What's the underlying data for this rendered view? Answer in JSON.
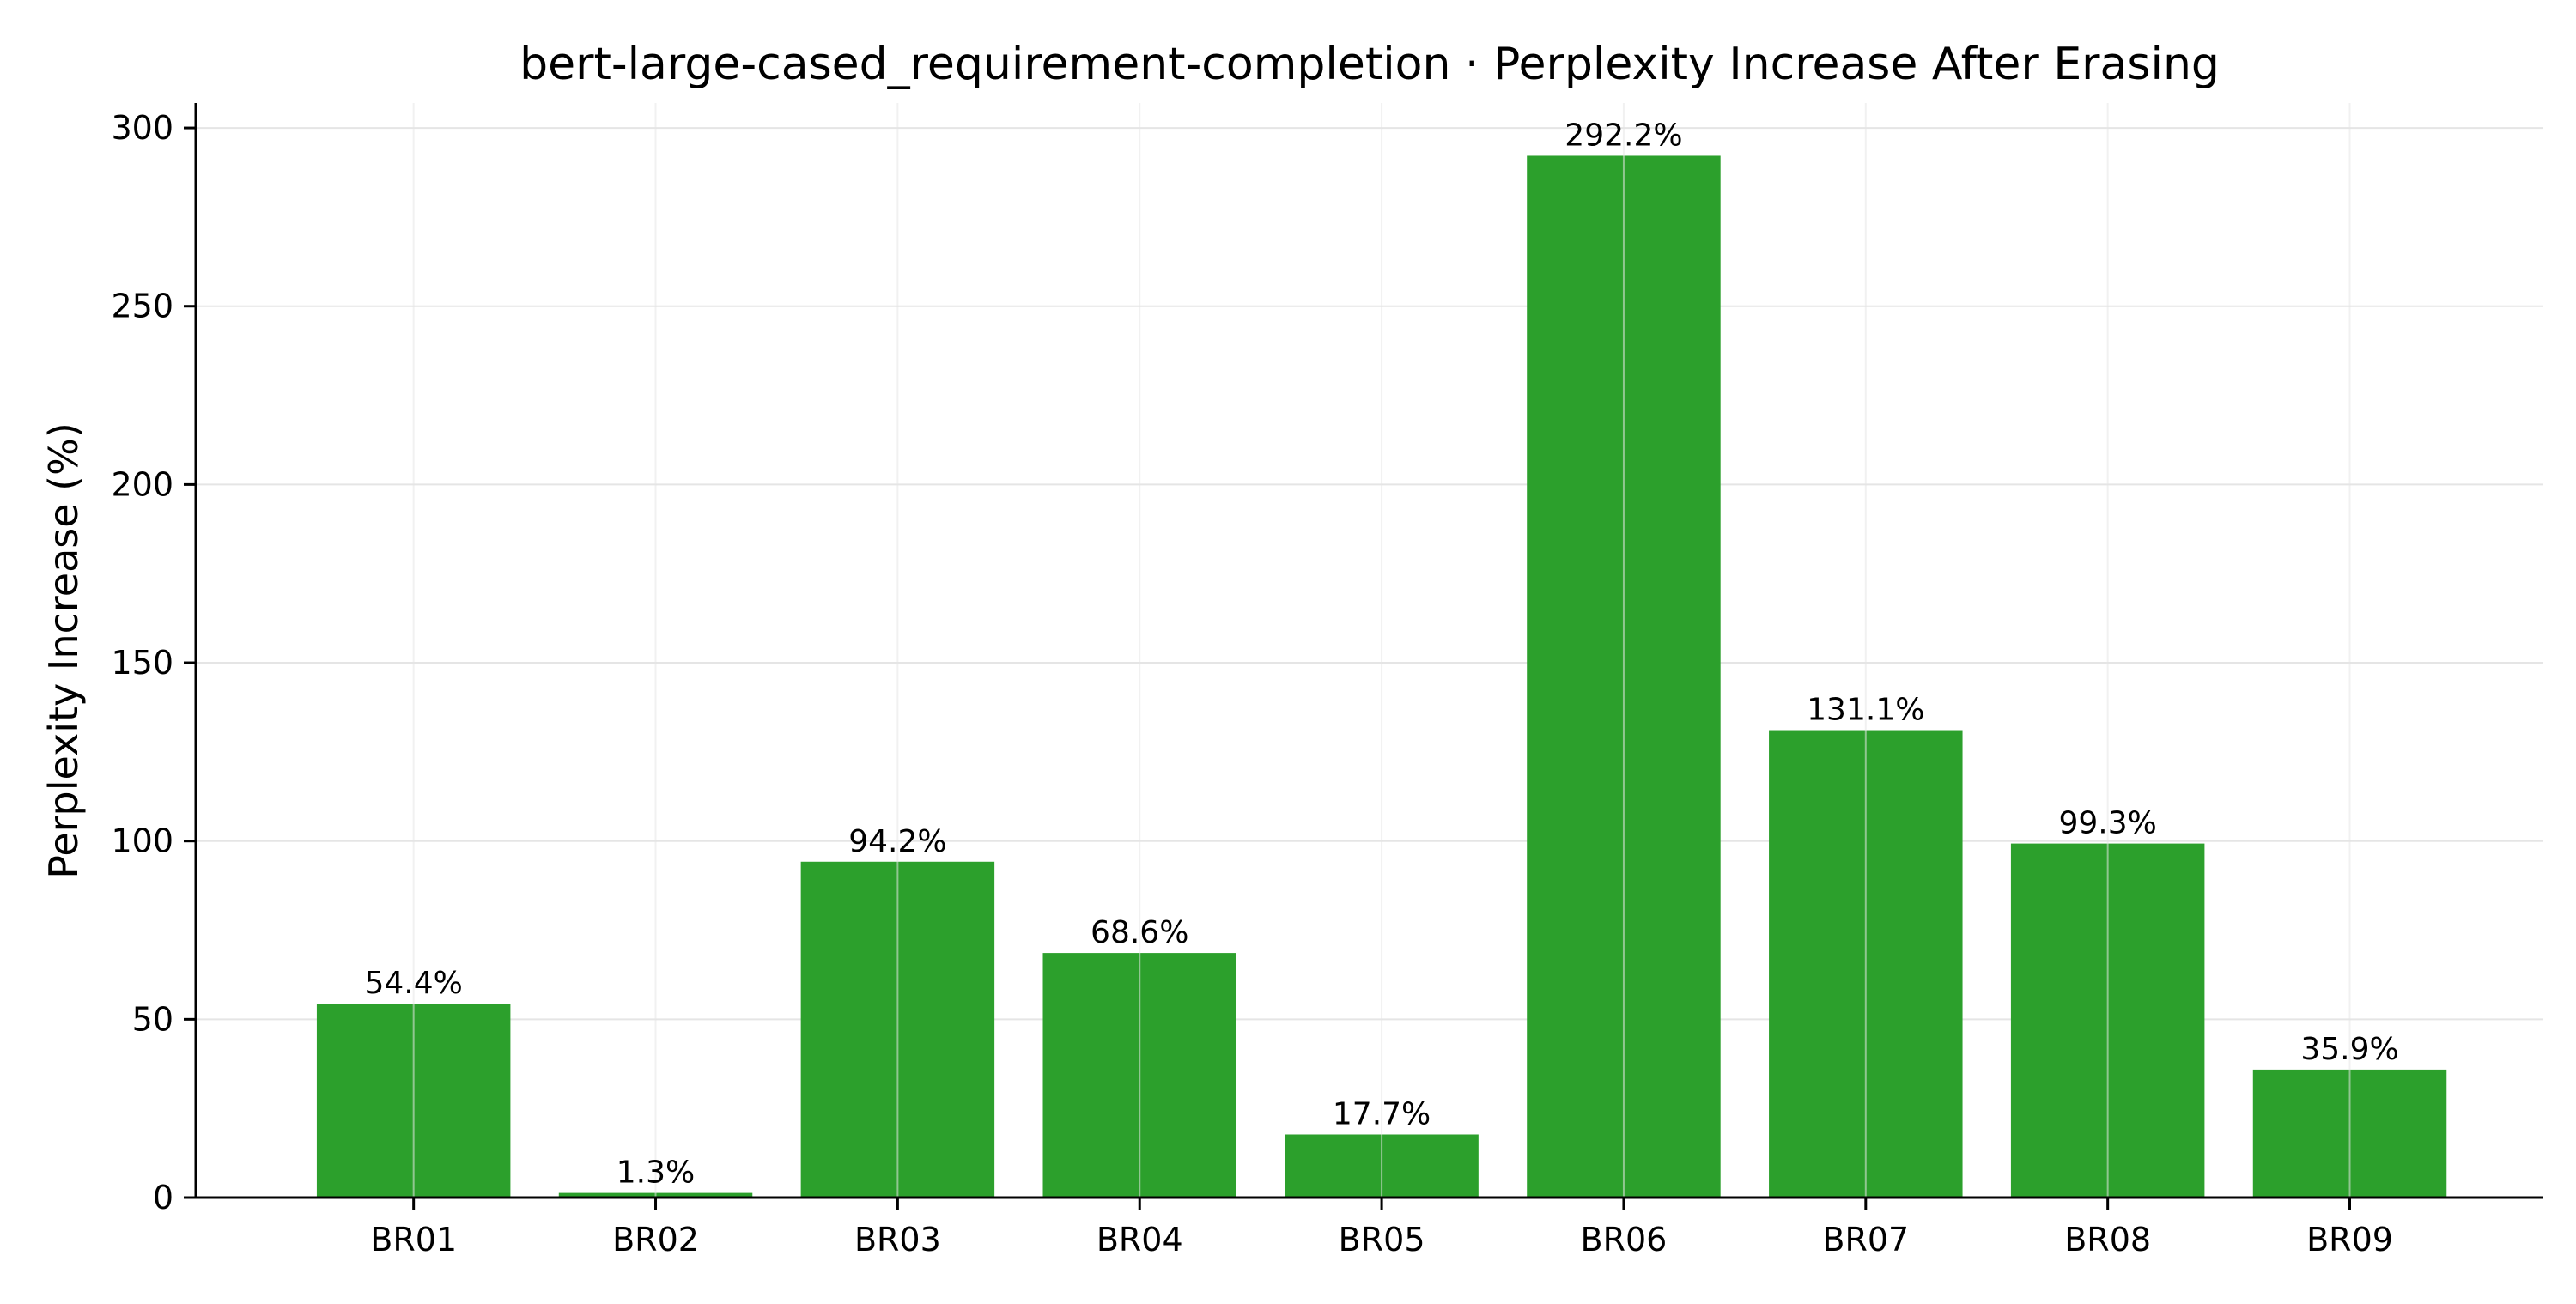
{
  "chart_data": {
    "type": "bar",
    "title": "bert-large-cased_requirement-completion · Perplexity Increase After Erasing",
    "xlabel": "",
    "ylabel": "Perplexity Increase (%)",
    "categories": [
      "BR01",
      "BR02",
      "BR03",
      "BR04",
      "BR05",
      "BR06",
      "BR07",
      "BR08",
      "BR09"
    ],
    "values": [
      54.4,
      1.3,
      94.2,
      68.6,
      17.7,
      292.2,
      131.1,
      99.3,
      35.9
    ],
    "value_labels": [
      "54.4%",
      "1.3%",
      "94.2%",
      "68.6%",
      "17.7%",
      "292.2%",
      "131.1%",
      "99.3%",
      "35.9%"
    ],
    "ylim": [
      0,
      307
    ],
    "yticks": [
      0,
      50,
      100,
      150,
      200,
      250,
      300
    ],
    "grid": true,
    "bar_color": "#2ca02c"
  }
}
